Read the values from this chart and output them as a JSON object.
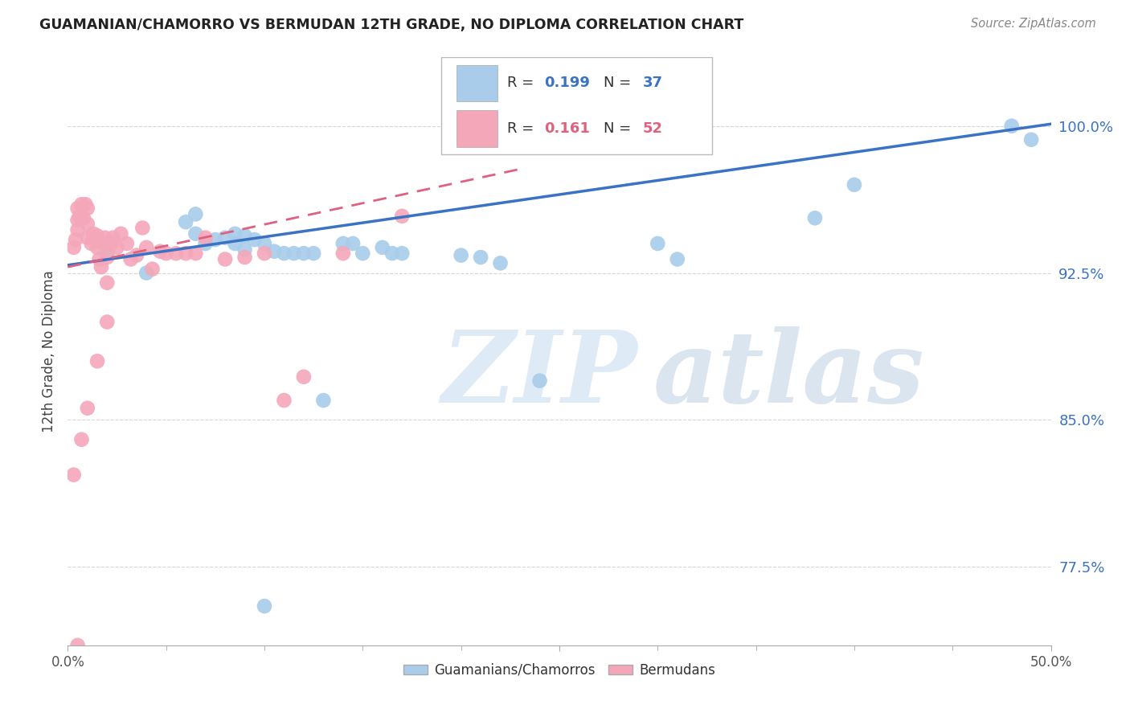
{
  "title": "GUAMANIAN/CHAMORRO VS BERMUDAN 12TH GRADE, NO DIPLOMA CORRELATION CHART",
  "source": "Source: ZipAtlas.com",
  "ylabel": "12th Grade, No Diploma",
  "yticks": [
    0.775,
    0.85,
    0.925,
    1.0
  ],
  "ytick_labels": [
    "77.5%",
    "85.0%",
    "92.5%",
    "100.0%"
  ],
  "xlim": [
    0.0,
    0.5
  ],
  "ylim": [
    0.735,
    1.035
  ],
  "legend_r1": "0.199",
  "legend_n1": "37",
  "legend_r2": "0.161",
  "legend_n2": "52",
  "blue_color": "#a8ccea",
  "pink_color": "#f4a7b9",
  "blue_line_color": "#3a72c4",
  "pink_line_color": "#e06080",
  "watermark_zip": "ZIP",
  "watermark_atlas": "atlas",
  "blue_line_x0": 0.0,
  "blue_line_y0": 0.929,
  "blue_line_x1": 0.5,
  "blue_line_y1": 1.001,
  "pink_line_x0": 0.0,
  "pink_line_x1": 0.23,
  "pink_line_y0": 0.928,
  "pink_line_y1": 0.978,
  "blue_scatter_x": [
    0.02,
    0.04,
    0.06,
    0.065,
    0.07,
    0.075,
    0.08,
    0.085,
    0.085,
    0.09,
    0.09,
    0.095,
    0.1,
    0.105,
    0.11,
    0.115,
    0.12,
    0.125,
    0.13,
    0.14,
    0.145,
    0.15,
    0.16,
    0.165,
    0.17,
    0.2,
    0.21,
    0.22,
    0.24,
    0.3,
    0.31,
    0.38,
    0.4,
    0.48,
    0.49,
    0.065,
    0.1
  ],
  "blue_scatter_y": [
    0.935,
    0.925,
    0.951,
    0.945,
    0.94,
    0.942,
    0.943,
    0.94,
    0.945,
    0.944,
    0.937,
    0.942,
    0.94,
    0.936,
    0.935,
    0.935,
    0.935,
    0.935,
    0.86,
    0.94,
    0.94,
    0.935,
    0.938,
    0.935,
    0.935,
    0.934,
    0.933,
    0.93,
    0.87,
    0.94,
    0.932,
    0.953,
    0.97,
    1.0,
    0.993,
    0.955,
    0.755
  ],
  "pink_scatter_x": [
    0.003,
    0.004,
    0.005,
    0.005,
    0.005,
    0.006,
    0.007,
    0.008,
    0.009,
    0.01,
    0.01,
    0.01,
    0.012,
    0.013,
    0.014,
    0.015,
    0.015,
    0.016,
    0.017,
    0.018,
    0.019,
    0.02,
    0.02,
    0.022,
    0.023,
    0.025,
    0.027,
    0.03,
    0.032,
    0.035,
    0.038,
    0.04,
    0.043,
    0.047,
    0.05,
    0.055,
    0.06,
    0.065,
    0.07,
    0.08,
    0.09,
    0.1,
    0.11,
    0.12,
    0.14,
    0.17,
    0.003,
    0.005,
    0.007,
    0.01,
    0.015,
    0.02
  ],
  "pink_scatter_y": [
    0.938,
    0.942,
    0.947,
    0.952,
    0.958,
    0.954,
    0.96,
    0.953,
    0.96,
    0.958,
    0.95,
    0.943,
    0.94,
    0.945,
    0.942,
    0.944,
    0.938,
    0.932,
    0.928,
    0.94,
    0.943,
    0.933,
    0.92,
    0.94,
    0.943,
    0.938,
    0.945,
    0.94,
    0.932,
    0.934,
    0.948,
    0.938,
    0.927,
    0.936,
    0.935,
    0.935,
    0.935,
    0.935,
    0.943,
    0.932,
    0.933,
    0.935,
    0.86,
    0.872,
    0.935,
    0.954,
    0.822,
    0.735,
    0.84,
    0.856,
    0.88,
    0.9
  ]
}
